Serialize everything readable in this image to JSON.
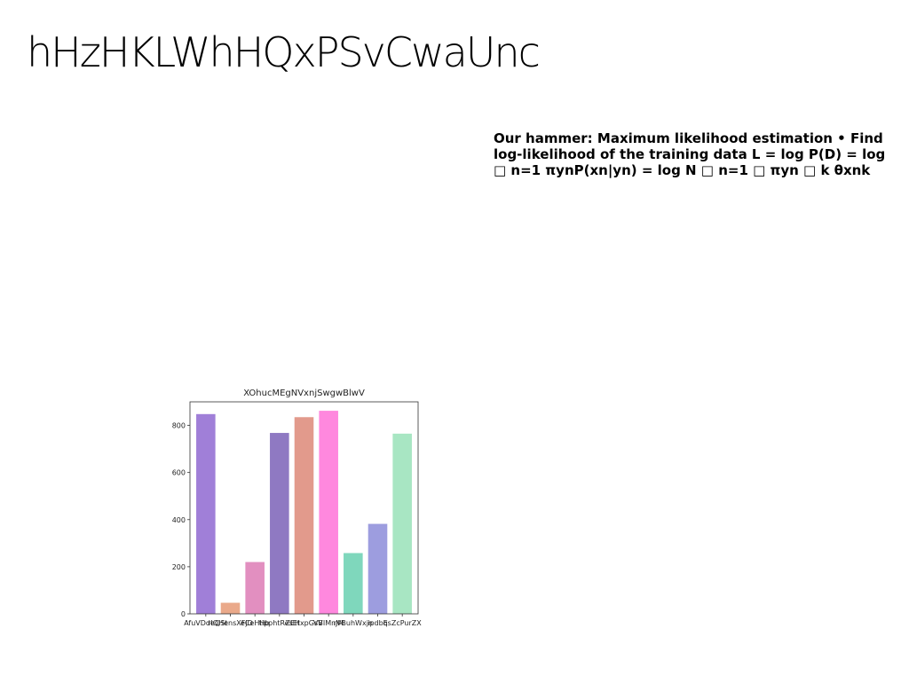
{
  "slide": {
    "title": "hHzHKLWhHQxPSvCwaUnc",
    "body_lines": [
      "Our hammer: Maximum likelihood estimation • Find",
      "log-likelihood of the training data L = log P(D) = log",
      "□ n=1 πynP(xn|yn) = log N □ n=1 □ πyn □ k θxnk"
    ]
  },
  "chart_data": {
    "type": "bar",
    "title": "XOhucMEgNVxnjSwgwBlwV",
    "xlabel": "",
    "ylabel": "",
    "categories": [
      "AfuVDdeQSt",
      "rIQHensXFjO",
      "eCeHHb",
      "tipphtResEt",
      "ZEHxpGsV",
      "VBIMnJM",
      "rVBuhWxjn",
      "ipdbq",
      "EsZcPurZX"
    ],
    "values": [
      848,
      47,
      220,
      768,
      835,
      862,
      258,
      382,
      765
    ],
    "colors": [
      "#a07fd8",
      "#eaa98a",
      "#e28fc0",
      "#8f79c2",
      "#e29a8c",
      "#ff88de",
      "#7fd7bc",
      "#9d9ddf",
      "#a8e6c3"
    ],
    "ylim": [
      0,
      900
    ],
    "yticks": [
      0,
      200,
      400,
      600,
      800
    ],
    "grid": false,
    "legend": false
  }
}
